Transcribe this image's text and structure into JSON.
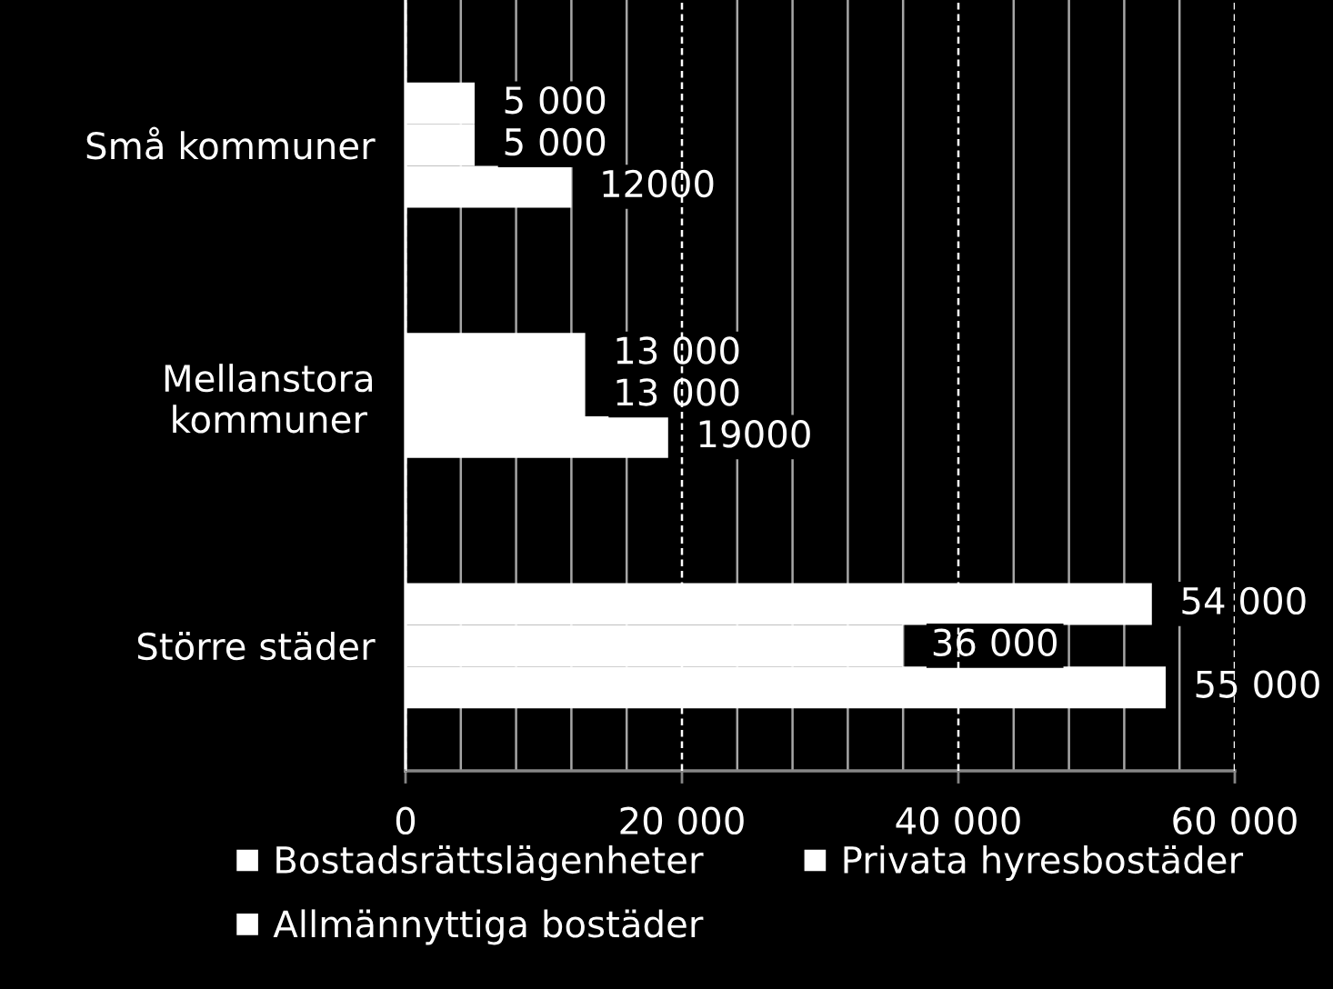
{
  "chart_data": {
    "type": "bar",
    "orientation": "horizontal",
    "categories": [
      "Små kommuner",
      "Mellanstora\nkommuner",
      "Större städer"
    ],
    "series": [
      {
        "name": "Bostadsrättslägenheter",
        "color": "#ffffff",
        "values": [
          5000,
          13000,
          54000
        ],
        "value_labels": [
          "5 000",
          "13 000",
          "54 000"
        ]
      },
      {
        "name": "Privata hyresbostäder",
        "color": "#ffffff",
        "values": [
          5000,
          13000,
          36000
        ],
        "value_labels": [
          "5 000",
          "13 000",
          "36 000"
        ]
      },
      {
        "name": "Allmännyttiga bostäder",
        "color": "#ffffff",
        "values": [
          12000,
          19000,
          55000
        ],
        "value_labels": [
          "12000",
          "19000",
          "55 000"
        ]
      }
    ],
    "xlim": [
      0,
      60000
    ],
    "xticks": [
      0,
      {
        "value": 4000,
        "label": null
      },
      {
        "value": 8000,
        "label": null
      },
      {
        "value": 12000,
        "label": null
      },
      {
        "value": 16000,
        "label": null
      },
      {
        "value": 20000,
        "label": "20 000"
      },
      {
        "value": 24000,
        "label": null
      },
      {
        "value": 28000,
        "label": null
      },
      {
        "value": 32000,
        "label": null
      },
      {
        "value": 36000,
        "label": null
      },
      {
        "value": 40000,
        "label": "40 000"
      },
      {
        "value": 44000,
        "label": null
      },
      {
        "value": 48000,
        "label": null
      },
      {
        "value": 52000,
        "label": null
      },
      {
        "value": 56000,
        "label": null
      },
      {
        "value": 60000,
        "label": "60 000"
      }
    ],
    "grid": "x",
    "legend": "bottom"
  }
}
